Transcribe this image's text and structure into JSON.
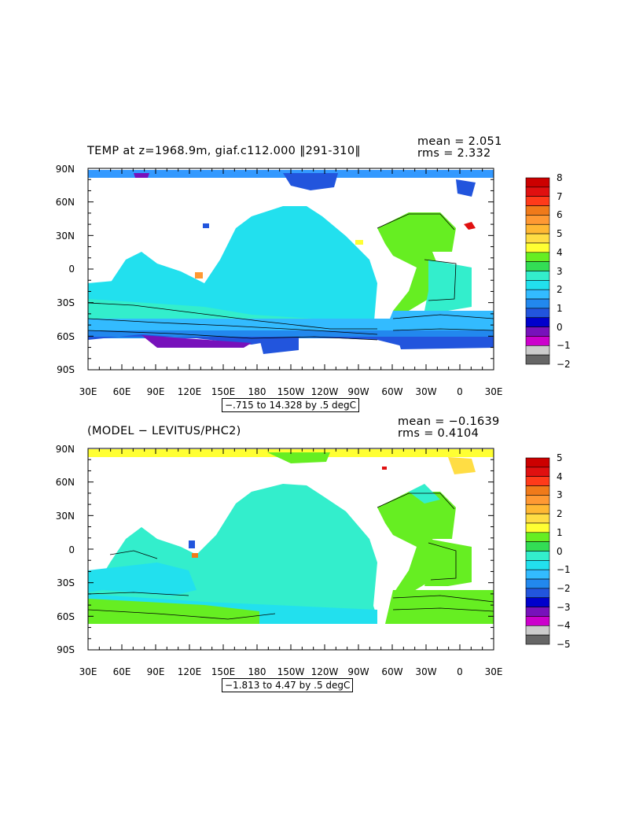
{
  "panel_top": {
    "title": "TEMP at z=1968.9m, giaf.c112.000 ‖291-310‖",
    "mean": "mean = 2.051",
    "rms": "rms = 2.332",
    "range": "−.715 to 14.328 by .5 degC",
    "y_ticks": [
      "90N",
      "60N",
      "30N",
      "0",
      "30S",
      "60S",
      "90S"
    ],
    "x_ticks": [
      "30E",
      "60E",
      "90E",
      "120E",
      "150E",
      "180",
      "150W",
      "120W",
      "90W",
      "60W",
      "30W",
      "0",
      "30E"
    ],
    "colorbar": {
      "labels": [
        "8",
        "7",
        "6",
        "5",
        "4",
        "3",
        "2",
        "1",
        "0",
        "−1",
        "−2"
      ],
      "colors": [
        "#cc0000",
        "#e01010",
        "#ff3a1a",
        "#f07a1a",
        "#ff9933",
        "#ffb833",
        "#ffdd44",
        "#ffff33",
        "#66ee22",
        "#33dd55",
        "#33eecc",
        "#22e0ee",
        "#33bbff",
        "#2288ee",
        "#2255dd",
        "#0000cc",
        "#7711bb",
        "#cc00cc",
        "#cccccc",
        "#666666"
      ]
    }
  },
  "panel_bottom": {
    "title": "(MODEL − LEVITUS/PHC2)",
    "mean": "mean = −0.1639",
    "rms": "rms = 0.4104",
    "range": "−1.813 to 4.47 by .5 degC",
    "y_ticks": [
      "90N",
      "60N",
      "30N",
      "0",
      "30S",
      "60S",
      "90S"
    ],
    "x_ticks": [
      "30E",
      "60E",
      "90E",
      "120E",
      "150E",
      "180",
      "150W",
      "120W",
      "90W",
      "60W",
      "30W",
      "0",
      "30E"
    ],
    "colorbar": {
      "labels": [
        "5",
        "4",
        "3",
        "2",
        "1",
        "0",
        "−1",
        "−2",
        "−3",
        "−4",
        "−5"
      ],
      "colors": [
        "#cc0000",
        "#e01010",
        "#ff3a1a",
        "#f07a1a",
        "#ff9933",
        "#ffb833",
        "#ffdd44",
        "#ffff33",
        "#66ee22",
        "#33dd55",
        "#33eecc",
        "#22e0ee",
        "#33bbff",
        "#2288ee",
        "#2255dd",
        "#0000cc",
        "#7711bb",
        "#cc00cc",
        "#cccccc",
        "#666666"
      ]
    }
  }
}
